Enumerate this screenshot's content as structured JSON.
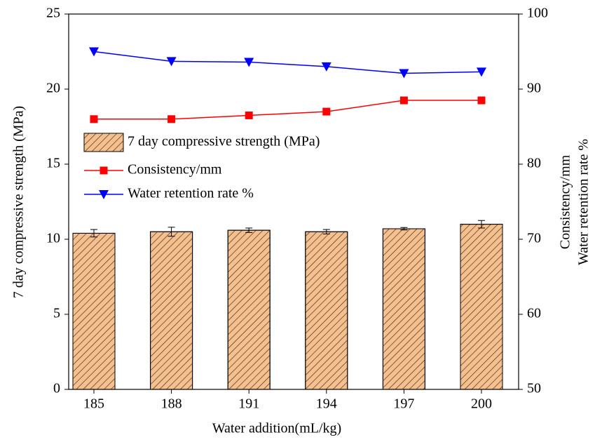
{
  "chart_data": {
    "type": "bar",
    "xlabel": "Water addition(mL/kg)",
    "ylabel": "7 day compressive strength (MPa)",
    "y2label": [
      "Consistency/mm",
      "Water retention rate %"
    ],
    "categories": [
      "185",
      "188",
      "191",
      "194",
      "197",
      "200"
    ],
    "ylim": [
      0,
      25
    ],
    "yticks": [
      0,
      5,
      10,
      15,
      20,
      25
    ],
    "y2lim": [
      50,
      100
    ],
    "y2ticks": [
      50,
      60,
      70,
      80,
      90,
      100
    ],
    "series": [
      {
        "name": "7 day compressive strength (MPa)",
        "type": "bar",
        "color": "#f6c08e",
        "values": [
          10.4,
          10.5,
          10.6,
          10.5,
          10.7,
          11.0
        ],
        "errors": [
          0.25,
          0.3,
          0.15,
          0.15,
          0.08,
          0.25
        ]
      },
      {
        "name": "Consistency/mm",
        "type": "line",
        "axis": "y2",
        "marker": "square",
        "color": "#ff0000",
        "values": [
          86,
          86,
          86.5,
          87,
          88.5,
          88.5
        ]
      },
      {
        "name": "Water retention rate %",
        "type": "line",
        "axis": "y2",
        "marker": "triangle-down",
        "color": "#0000ff",
        "values": [
          95,
          93.7,
          93.6,
          93,
          92.1,
          92.3
        ]
      }
    ]
  }
}
